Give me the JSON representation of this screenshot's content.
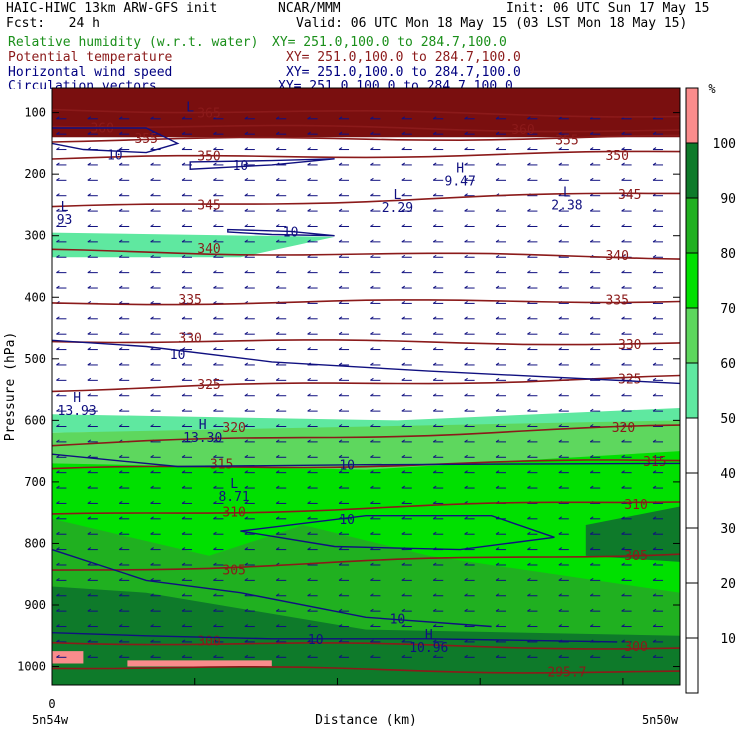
{
  "header": {
    "model": "HAIC-HIWC 13km ARW-GFS init",
    "org": "NCAR/MMM",
    "init": "Init: 06 UTC Sun 17 May 15",
    "fcst": "Fcst:   24 h",
    "valid": "Valid: 06 UTC Mon 18 May 15 (03 LST Mon 18 May 15)",
    "fields": [
      {
        "name": "Relative humidity (w.r.t. water)",
        "coords": "XY= 251.0,100.0 to 284.7,100.0",
        "color": "#1a8f1a"
      },
      {
        "name": "Potential temperature",
        "coords": "XY= 251.0,100.0 to 284.7,100.0",
        "color": "#8b1a1a"
      },
      {
        "name": "Horizontal wind speed",
        "coords": "XY= 251.0,100.0 to 284.7,100.0",
        "color": "#000080"
      },
      {
        "name": "Circulation vectors",
        "coords": "XY= 251.0,100.0 to 284.7,100.0",
        "color": "#000080"
      }
    ]
  },
  "colors": {
    "theta": "#8b1a1a",
    "wind": "#101080",
    "vectors": "#101080"
  },
  "chart_data": {
    "type": "heatmap",
    "xlabel": "Distance (km)",
    "ylabel": "Pressure (hPa)",
    "x_left_label": "5n54w",
    "x_right_label": "5n50w",
    "x_zero_label": "0",
    "y_axis": {
      "min": 60,
      "max": 1030,
      "ticks": [
        100,
        200,
        300,
        400,
        500,
        600,
        700,
        800,
        900,
        1000
      ]
    },
    "colorbar": {
      "unit": "%",
      "levels": [
        10,
        20,
        30,
        40,
        50,
        60,
        70,
        80,
        90,
        100
      ],
      "bands": [
        {
          "from": 0,
          "to": 50,
          "color": "#ffffff"
        },
        {
          "from": 50,
          "to": 60,
          "color": "#5fe8a0"
        },
        {
          "from": 60,
          "to": 70,
          "color": "#5ed75e"
        },
        {
          "from": 70,
          "to": 80,
          "color": "#00e000"
        },
        {
          "from": 80,
          "to": 90,
          "color": "#20b020"
        },
        {
          "from": 90,
          "to": 100,
          "color": "#0e7a2a"
        },
        {
          "from": 100,
          "to": 110,
          "color": "#fa8c8c"
        }
      ]
    },
    "rh_regions": [
      {
        "color": "#7a0f0f",
        "points": [
          [
            0,
            60
          ],
          [
            1,
            60
          ],
          [
            1,
            140
          ],
          [
            0,
            140
          ]
        ]
      },
      {
        "color": "#5fe8a0",
        "points": [
          [
            0,
            295
          ],
          [
            0.45,
            302
          ],
          [
            0.3,
            335
          ],
          [
            0,
            335
          ]
        ]
      },
      {
        "color": "#5fe8a0",
        "points": [
          [
            0,
            590
          ],
          [
            0.55,
            600
          ],
          [
            1,
            580
          ],
          [
            1,
            600
          ],
          [
            0.75,
            610
          ],
          [
            0,
            620
          ]
        ]
      },
      {
        "color": "#5ed75e",
        "points": [
          [
            0,
            620
          ],
          [
            1,
            600
          ],
          [
            1,
            1030
          ],
          [
            0,
            1030
          ]
        ]
      },
      {
        "color": "#00e000",
        "points": [
          [
            0,
            670
          ],
          [
            0.5,
            680
          ],
          [
            1,
            650
          ],
          [
            1,
            1030
          ],
          [
            0,
            1030
          ]
        ]
      },
      {
        "color": "#20b020",
        "points": [
          [
            0,
            760
          ],
          [
            0.25,
            820
          ],
          [
            0.4,
            770
          ],
          [
            0.6,
            820
          ],
          [
            1,
            880
          ],
          [
            1,
            1030
          ],
          [
            0,
            1030
          ]
        ]
      },
      {
        "color": "#0e7a2a",
        "points": [
          [
            0.85,
            770
          ],
          [
            1,
            740
          ],
          [
            1,
            830
          ],
          [
            0.85,
            820
          ]
        ]
      },
      {
        "color": "#0e7a2a",
        "points": [
          [
            0,
            870
          ],
          [
            0.15,
            880
          ],
          [
            0.5,
            940
          ],
          [
            1,
            950
          ],
          [
            1,
            1030
          ],
          [
            0,
            1030
          ]
        ]
      },
      {
        "color": "#fa8c8c",
        "points": [
          [
            0,
            975
          ],
          [
            0.05,
            975
          ],
          [
            0.05,
            995
          ],
          [
            0,
            995
          ]
        ]
      },
      {
        "color": "#fa8c8c",
        "points": [
          [
            0.12,
            990
          ],
          [
            0.35,
            990
          ],
          [
            0.35,
            1000
          ],
          [
            0.12,
            1000
          ]
        ]
      }
    ],
    "theta_contours": [
      {
        "label": "365",
        "left_p": 95,
        "right_p": 105,
        "label_positions": [
          [
            0.25,
            100
          ]
        ]
      },
      {
        "label": "360",
        "left_p": 120,
        "right_p": 130,
        "label_positions": [
          [
            0.08,
            124
          ],
          [
            0.75,
            127
          ]
        ]
      },
      {
        "label": "355",
        "left_p": 145,
        "right_p": 140,
        "label_positions": [
          [
            0.15,
            141
          ],
          [
            0.82,
            144
          ]
        ]
      },
      {
        "label": "350",
        "left_p": 175,
        "right_p": 165,
        "label_positions": [
          [
            0.25,
            170
          ],
          [
            0.9,
            169
          ]
        ]
      },
      {
        "label": "345",
        "left_p": 255,
        "right_p": 230,
        "label_positions": [
          [
            0.25,
            249
          ],
          [
            0.92,
            232
          ]
        ]
      },
      {
        "label": "340",
        "left_p": 325,
        "right_p": 335,
        "label_positions": [
          [
            0.25,
            320
          ],
          [
            0.9,
            331
          ]
        ]
      },
      {
        "label": "335",
        "left_p": 410,
        "right_p": 405,
        "label_positions": [
          [
            0.22,
            403
          ],
          [
            0.9,
            404
          ]
        ]
      },
      {
        "label": "330",
        "left_p": 470,
        "right_p": 475,
        "label_positions": [
          [
            0.22,
            465
          ],
          [
            0.92,
            476
          ]
        ]
      },
      {
        "label": "325",
        "left_p": 550,
        "right_p": 530,
        "label_positions": [
          [
            0.25,
            541
          ],
          [
            0.92,
            532
          ]
        ]
      },
      {
        "label": "320",
        "left_p": 640,
        "right_p": 610,
        "label_positions": [
          [
            0.29,
            611
          ],
          [
            0.91,
            611
          ]
        ]
      },
      {
        "label": "315",
        "left_p": 680,
        "right_p": 665,
        "label_positions": [
          [
            0.27,
            670
          ],
          [
            0.96,
            666
          ]
        ]
      },
      {
        "label": "310",
        "left_p": 755,
        "right_p": 730,
        "label_positions": [
          [
            0.29,
            748
          ],
          [
            0.93,
            736
          ]
        ]
      },
      {
        "label": "305",
        "left_p": 845,
        "right_p": 815,
        "label_positions": [
          [
            0.29,
            842
          ],
          [
            0.93,
            819
          ]
        ]
      },
      {
        "label": "300",
        "left_p": 960,
        "right_p": 970,
        "label_positions": [
          [
            0.25,
            958
          ],
          [
            0.93,
            967
          ]
        ]
      },
      {
        "label": "295.7",
        "left_p": 1000,
        "right_p": 1010,
        "label_positions": [
          [
            0.82,
            1008
          ]
        ]
      }
    ],
    "wind_contours": [
      {
        "label": "10",
        "points": [
          [
            0,
            125
          ],
          [
            0.15,
            125
          ],
          [
            0.2,
            150
          ],
          [
            0.15,
            165
          ],
          [
            0.05,
            160
          ],
          [
            0,
            150
          ]
        ],
        "closed": false,
        "label_positions": [
          [
            0.1,
            168
          ]
        ]
      },
      {
        "label": "10",
        "points": [
          [
            0.22,
            180
          ],
          [
            0.35,
            178
          ],
          [
            0.45,
            175
          ],
          [
            0.35,
            185
          ],
          [
            0.22,
            192
          ],
          [
            0.22,
            180
          ]
        ],
        "closed": true,
        "label_positions": [
          [
            0.3,
            185
          ]
        ]
      },
      {
        "label": "10",
        "points": [
          [
            0.28,
            290
          ],
          [
            0.38,
            293
          ],
          [
            0.45,
            300
          ],
          [
            0.35,
            298
          ],
          [
            0.28,
            294
          ],
          [
            0.28,
            290
          ]
        ],
        "closed": true,
        "label_positions": [
          [
            0.38,
            293
          ]
        ]
      },
      {
        "label": "10",
        "points": [
          [
            0,
            470
          ],
          [
            0.15,
            480
          ],
          [
            0.35,
            505
          ],
          [
            0.6,
            520
          ],
          [
            1,
            540
          ]
        ],
        "closed": false,
        "label_positions": [
          [
            0.2,
            492
          ]
        ]
      },
      {
        "label": "10",
        "points": [
          [
            0,
            655
          ],
          [
            0.2,
            675
          ],
          [
            0.5,
            672
          ],
          [
            1,
            670
          ]
        ],
        "closed": false,
        "label_positions": [
          [
            0.47,
            672
          ]
        ]
      },
      {
        "label": "10",
        "points": [
          [
            0.3,
            780
          ],
          [
            0.5,
            755
          ],
          [
            0.7,
            755
          ],
          [
            0.8,
            790
          ],
          [
            0.65,
            810
          ],
          [
            0.45,
            805
          ],
          [
            0.3,
            780
          ]
        ],
        "closed": true,
        "label_positions": [
          [
            0.47,
            760
          ]
        ]
      },
      {
        "label": "10",
        "points": [
          [
            0,
            810
          ],
          [
            0.15,
            860
          ],
          [
            0.3,
            880
          ],
          [
            0.5,
            920
          ],
          [
            0.7,
            935
          ]
        ],
        "closed": false,
        "label_positions": [
          [
            0.55,
            922
          ]
        ]
      },
      {
        "label": "10",
        "points": [
          [
            0,
            945
          ],
          [
            0.15,
            950
          ],
          [
            0.35,
            955
          ],
          [
            0.6,
            955
          ],
          [
            0.9,
            960
          ]
        ],
        "closed": false,
        "label_positions": [
          [
            0.42,
            955
          ]
        ]
      }
    ],
    "extrema": [
      {
        "type": "L",
        "value": "",
        "x": 0.22,
        "p": 98
      },
      {
        "type": "L",
        "value": "93",
        "x": 0.02,
        "p": 260
      },
      {
        "type": "H",
        "value": "9.47",
        "x": 0.65,
        "p": 197
      },
      {
        "type": "L",
        "value": "2.29",
        "x": 0.55,
        "p": 240
      },
      {
        "type": "L",
        "value": "2.38",
        "x": 0.82,
        "p": 236
      },
      {
        "type": "H",
        "value": "13.93",
        "x": 0.04,
        "p": 570
      },
      {
        "type": "H",
        "value": "13.30",
        "x": 0.24,
        "p": 614
      },
      {
        "type": "L",
        "value": "8.71",
        "x": 0.29,
        "p": 710
      },
      {
        "type": "H",
        "value": "10.96",
        "x": 0.6,
        "p": 955
      }
    ]
  }
}
